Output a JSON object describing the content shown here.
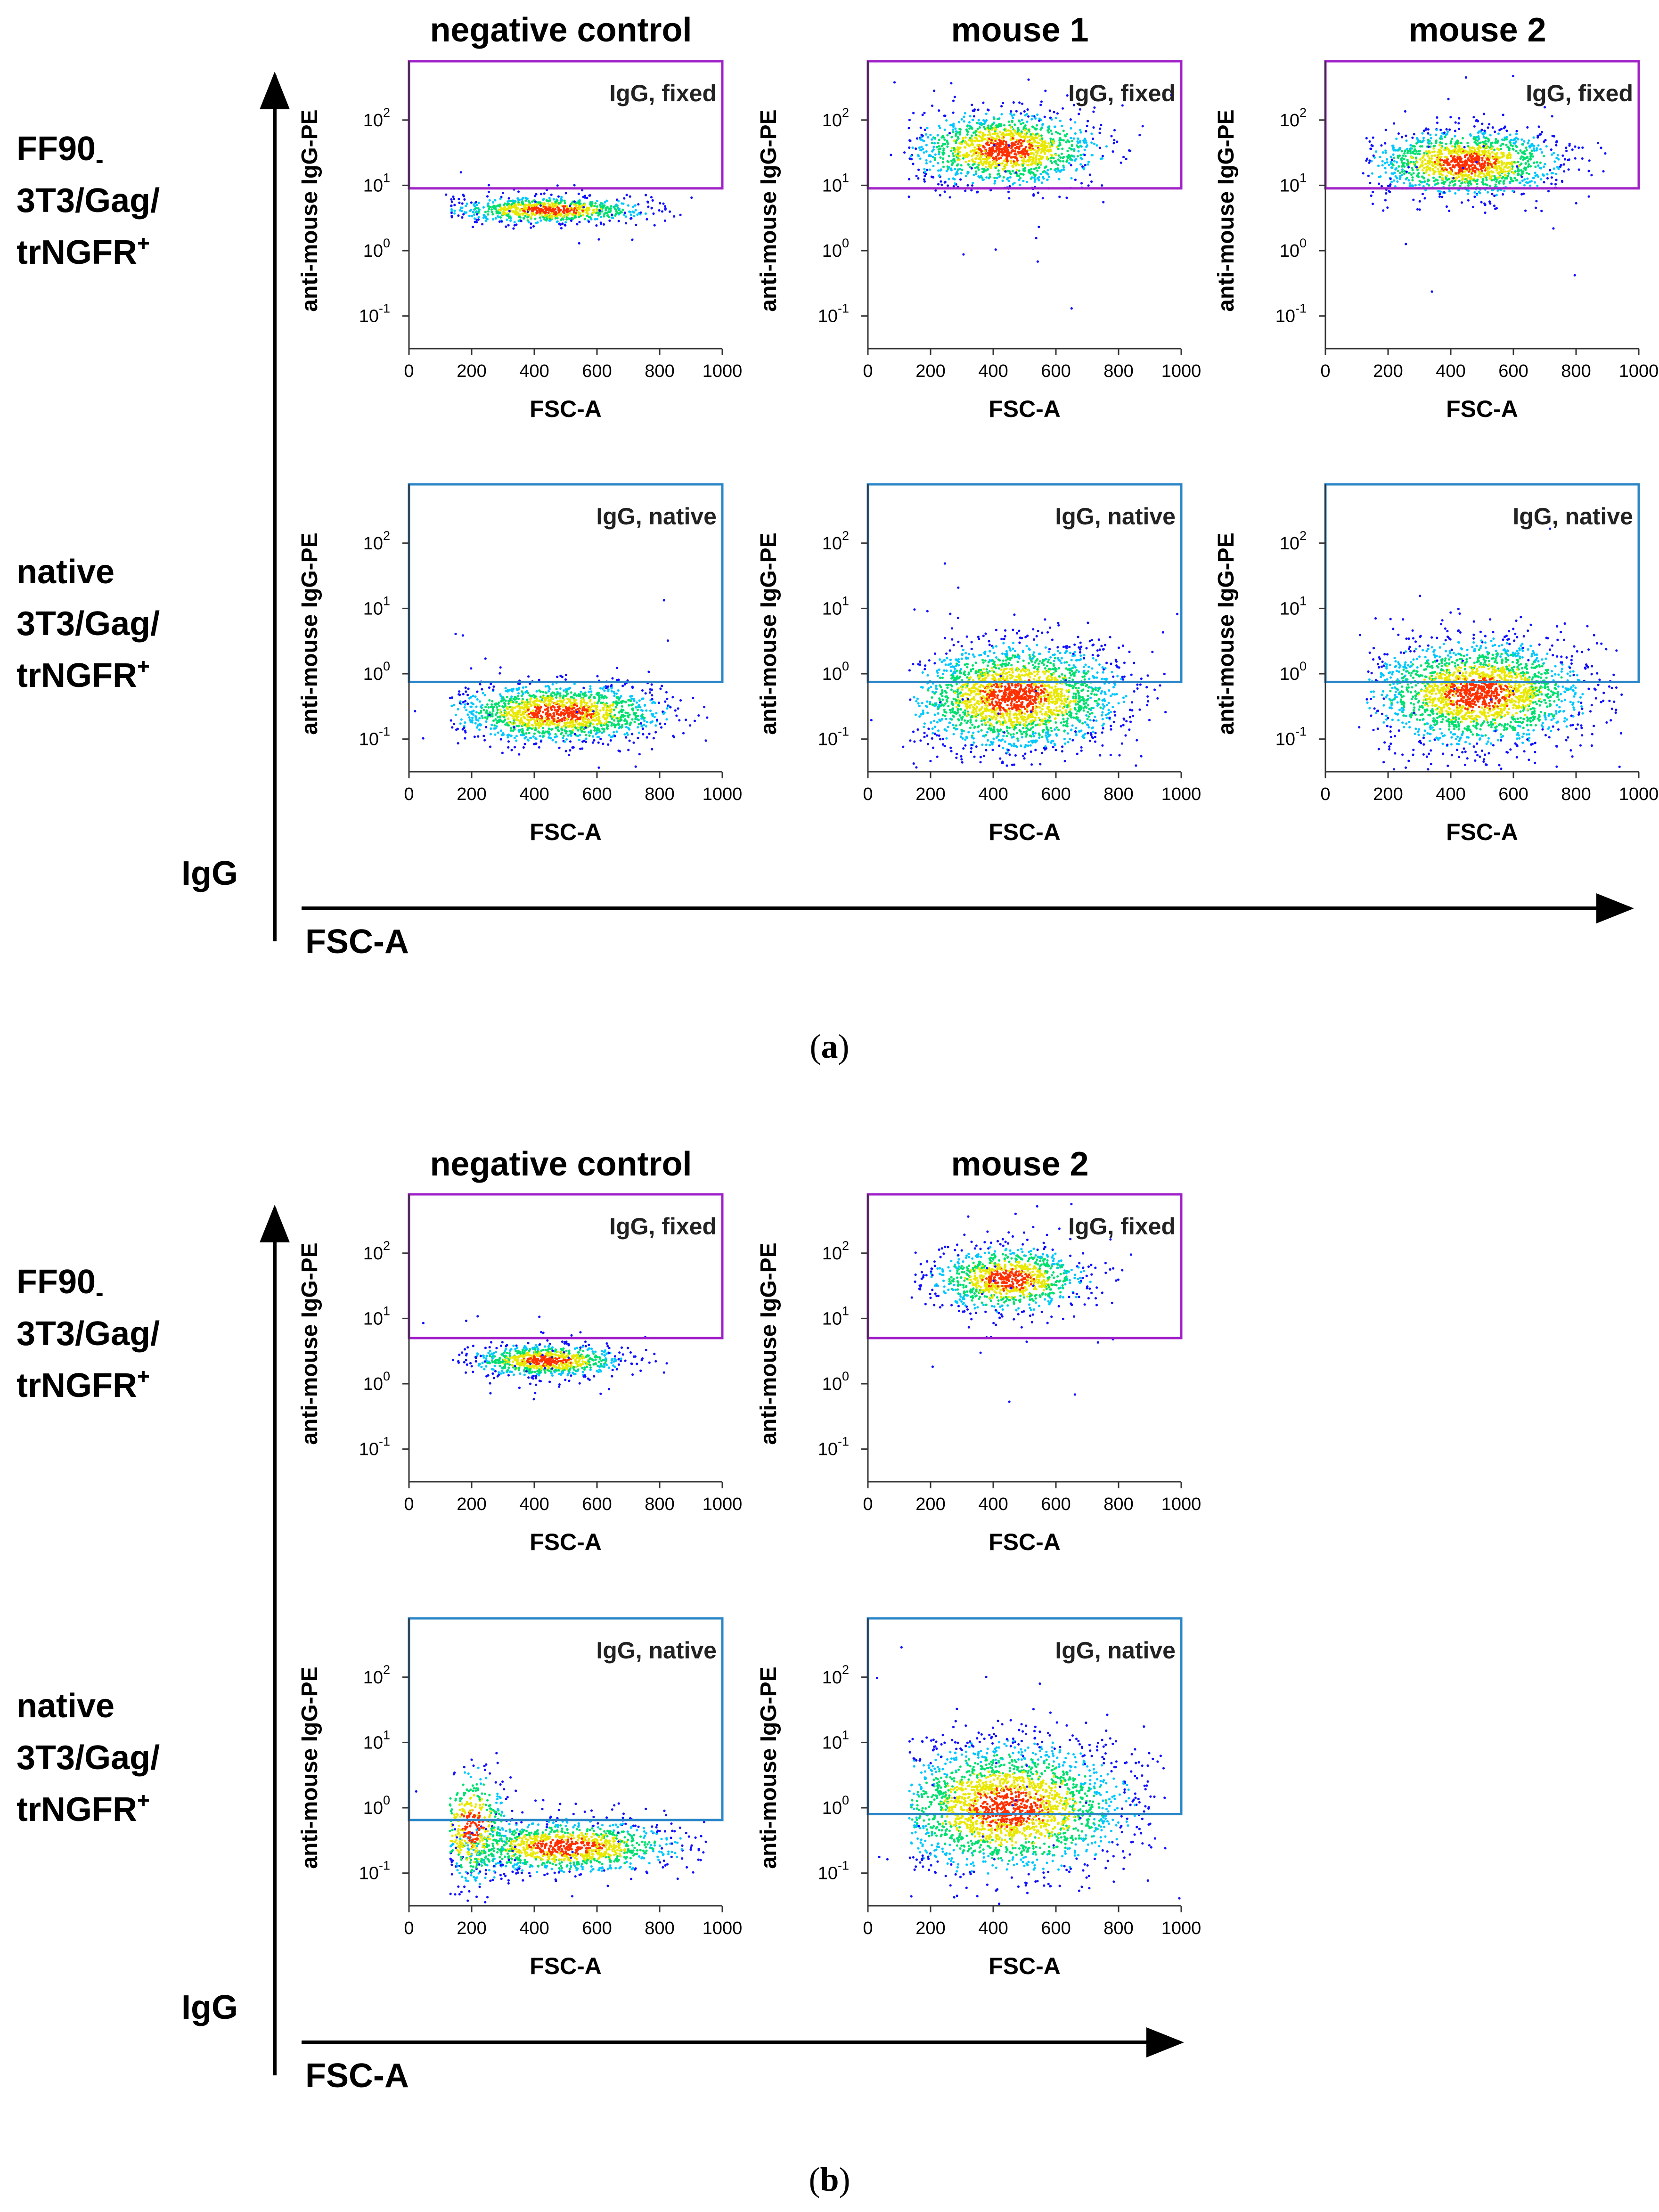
{
  "figure": {
    "panel_a": {
      "letter": "a",
      "columns": [
        "negative control",
        "mouse 1",
        "mouse 2"
      ],
      "rows": [
        {
          "line1": "FF90",
          "sub": "-",
          "line2": "3T3/Gag/",
          "line3": "trNGFR",
          "sup": "+"
        },
        {
          "line1": "native",
          "sub": "",
          "line2": "3T3/Gag/",
          "line3": "trNGFR",
          "sup": "+"
        }
      ],
      "big_y_label": "IgG",
      "big_x_label": "FSC-A"
    },
    "panel_b": {
      "letter": "b",
      "columns": [
        "negative control",
        "mouse 2"
      ],
      "rows": [
        {
          "line1": "FF90",
          "sub": "-",
          "line2": "3T3/Gag/",
          "line3": "trNGFR",
          "sup": "+"
        },
        {
          "line1": "native",
          "sub": "",
          "line2": "3T3/Gag/",
          "line3": "trNGFR",
          "sup": "+"
        }
      ],
      "big_y_label": "IgG",
      "big_x_label": "FSC-A"
    }
  },
  "colors": {
    "fixed_gate": "#a020c8",
    "native_gate": "#2b86c8",
    "density": [
      "#1010ff",
      "#00c8ff",
      "#00e070",
      "#e8e800",
      "#ff3000"
    ]
  },
  "chart_data": [
    {
      "id": "a-r1-c1",
      "panel": "a",
      "row": 1,
      "col": 1,
      "type": "scatter",
      "subtype": "density-dot-plot",
      "xlabel": "FSC-A",
      "ylabel": "anti-mouse IgG-PE",
      "gate_label": "IgG, fixed",
      "gate": "fixed",
      "xlim": [
        0,
        1000
      ],
      "ylim_log10": [
        -1.5,
        2.9
      ],
      "gate_threshold": 9,
      "x_ticks": [
        "0",
        "200",
        "400",
        "600",
        "800",
        "1000"
      ],
      "y_exponents": [
        "-1",
        "0",
        "1",
        "2"
      ],
      "clusters": [
        {
          "cx": 450,
          "cy_log": 0.62,
          "sx": 150,
          "sy": 0.1,
          "n": 800
        }
      ]
    },
    {
      "id": "a-r1-c2",
      "panel": "a",
      "row": 1,
      "col": 2,
      "type": "scatter",
      "subtype": "density-dot-plot",
      "xlabel": "FSC-A",
      "ylabel": "anti-mouse IgG-PE",
      "gate_label": "IgG, fixed",
      "gate": "fixed",
      "xlim": [
        0,
        1000
      ],
      "ylim_log10": [
        -1.5,
        2.9
      ],
      "gate_threshold": 9,
      "x_ticks": [
        "0",
        "200",
        "400",
        "600",
        "800",
        "1000"
      ],
      "y_exponents": [
        "-1",
        "0",
        "1",
        "2"
      ],
      "clusters": [
        {
          "cx": 440,
          "cy_log": 1.55,
          "sx": 150,
          "sy": 0.28,
          "n": 1400
        }
      ]
    },
    {
      "id": "a-r1-c3",
      "panel": "a",
      "row": 1,
      "col": 3,
      "type": "scatter",
      "subtype": "density-dot-plot",
      "xlabel": "FSC-A",
      "ylabel": "anti-mouse IgG-PE",
      "gate_label": "IgG, fixed",
      "gate": "fixed",
      "xlim": [
        0,
        1000
      ],
      "ylim_log10": [
        -1.5,
        2.9
      ],
      "gate_threshold": 9,
      "x_ticks": [
        "0",
        "200",
        "400",
        "600",
        "800",
        "1000"
      ],
      "y_exponents": [
        "-1",
        "0",
        "1",
        "2"
      ],
      "clusters": [
        {
          "cx": 450,
          "cy_log": 1.35,
          "sx": 150,
          "sy": 0.25,
          "n": 1400
        }
      ]
    },
    {
      "id": "a-r2-c1",
      "panel": "a",
      "row": 2,
      "col": 1,
      "type": "scatter",
      "subtype": "density-dot-plot",
      "xlabel": "FSC-A",
      "ylabel": "anti-mouse IgG-PE",
      "gate_label": "IgG, native",
      "gate": "native",
      "xlim": [
        0,
        1000
      ],
      "ylim_log10": [
        -1.5,
        2.9
      ],
      "gate_threshold": 0.75,
      "x_ticks": [
        "0",
        "200",
        "400",
        "600",
        "800",
        "1000"
      ],
      "y_exponents": [
        "-1",
        "0",
        "1",
        "2"
      ],
      "clusters": [
        {
          "cx": 480,
          "cy_log": -0.6,
          "sx": 170,
          "sy": 0.22,
          "n": 1500
        }
      ]
    },
    {
      "id": "a-r2-c2",
      "panel": "a",
      "row": 2,
      "col": 2,
      "type": "scatter",
      "subtype": "density-dot-plot",
      "xlabel": "FSC-A",
      "ylabel": "anti-mouse IgG-PE",
      "gate_label": "IgG, native",
      "gate": "native",
      "xlim": [
        0,
        1000
      ],
      "ylim_log10": [
        -1.5,
        2.9
      ],
      "gate_threshold": 0.75,
      "x_ticks": [
        "0",
        "200",
        "400",
        "600",
        "800",
        "1000"
      ],
      "y_exponents": [
        "-1",
        "0",
        "1",
        "2"
      ],
      "clusters": [
        {
          "cx": 470,
          "cy_log": -0.35,
          "sx": 170,
          "sy": 0.4,
          "n": 2200
        }
      ]
    },
    {
      "id": "a-r2-c3",
      "panel": "a",
      "row": 2,
      "col": 3,
      "type": "scatter",
      "subtype": "density-dot-plot",
      "xlabel": "FSC-A",
      "ylabel": "anti-mouse IgG-PE",
      "gate_label": "IgG, native",
      "gate": "native",
      "xlim": [
        0,
        1000
      ],
      "ylim_log10": [
        -1.5,
        2.9
      ],
      "gate_threshold": 0.75,
      "x_ticks": [
        "0",
        "200",
        "400",
        "600",
        "800",
        "1000"
      ],
      "y_exponents": [
        "-1",
        "0",
        "1",
        "2"
      ],
      "clusters": [
        {
          "cx": 490,
          "cy_log": -0.3,
          "sx": 170,
          "sy": 0.4,
          "n": 2200
        }
      ]
    },
    {
      "id": "b-r1-c1",
      "panel": "b",
      "row": 1,
      "col": 1,
      "type": "scatter",
      "subtype": "density-dot-plot",
      "xlabel": "FSC-A",
      "ylabel": "anti-mouse IgG-PE",
      "gate_label": "IgG, fixed",
      "gate": "fixed",
      "xlim": [
        0,
        1000
      ],
      "ylim_log10": [
        -1.5,
        2.9
      ],
      "gate_threshold": 5,
      "x_ticks": [
        "0",
        "200",
        "400",
        "600",
        "800",
        "1000"
      ],
      "y_exponents": [
        "-1",
        "0",
        "1",
        "2"
      ],
      "clusters": [
        {
          "cx": 440,
          "cy_log": 0.35,
          "sx": 120,
          "sy": 0.12,
          "n": 800
        }
      ]
    },
    {
      "id": "b-r1-c2",
      "panel": "b",
      "row": 1,
      "col": 2,
      "type": "scatter",
      "subtype": "density-dot-plot",
      "xlabel": "FSC-A",
      "ylabel": "anti-mouse IgG-PE",
      "gate_label": "IgG, fixed",
      "gate": "fixed",
      "xlim": [
        0,
        1000
      ],
      "ylim_log10": [
        -1.5,
        2.9
      ],
      "gate_threshold": 5,
      "x_ticks": [
        "0",
        "200",
        "400",
        "600",
        "800",
        "1000"
      ],
      "y_exponents": [
        "-1",
        "0",
        "1",
        "2"
      ],
      "clusters": [
        {
          "cx": 450,
          "cy_log": 1.6,
          "sx": 120,
          "sy": 0.25,
          "n": 1000
        }
      ]
    },
    {
      "id": "b-r2-c1",
      "panel": "b",
      "row": 2,
      "col": 1,
      "type": "scatter",
      "subtype": "density-dot-plot",
      "xlabel": "FSC-A",
      "ylabel": "anti-mouse IgG-PE",
      "gate_label": "IgG, native",
      "gate": "native",
      "xlim": [
        0,
        1000
      ],
      "ylim_log10": [
        -1.5,
        2.9
      ],
      "gate_threshold": 0.65,
      "x_ticks": [
        "0",
        "200",
        "400",
        "600",
        "800",
        "1000"
      ],
      "y_exponents": [
        "-1",
        "0",
        "1",
        "2"
      ],
      "clusters": [
        {
          "cx": 500,
          "cy_log": -0.6,
          "sx": 180,
          "sy": 0.2,
          "n": 1200
        },
        {
          "cx": 200,
          "cy_log": -0.3,
          "sx": 60,
          "sy": 0.45,
          "n": 500
        }
      ]
    },
    {
      "id": "b-r2-c2",
      "panel": "b",
      "row": 2,
      "col": 2,
      "type": "scatter",
      "subtype": "density-dot-plot",
      "xlabel": "FSC-A",
      "ylabel": "anti-mouse IgG-PE",
      "gate_label": "IgG, native",
      "gate": "native",
      "xlim": [
        0,
        1000
      ],
      "ylim_log10": [
        -1.5,
        2.9
      ],
      "gate_threshold": 0.8,
      "x_ticks": [
        "0",
        "200",
        "400",
        "600",
        "800",
        "1000"
      ],
      "y_exponents": [
        "-1",
        "0",
        "1",
        "2"
      ],
      "clusters": [
        {
          "cx": 450,
          "cy_log": 0.0,
          "sx": 190,
          "sy": 0.5,
          "n": 2400
        }
      ]
    }
  ]
}
